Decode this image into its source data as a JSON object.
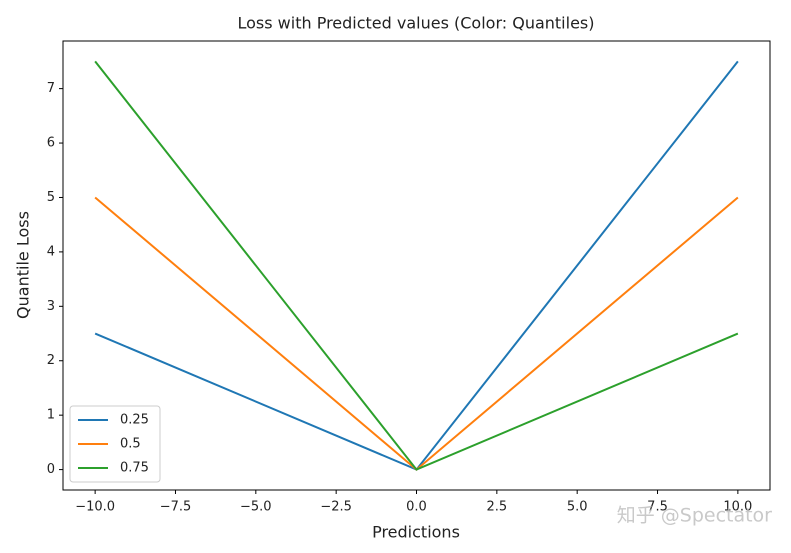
{
  "chart_data": {
    "type": "line",
    "title": "Loss with Predicted values (Color: Quantiles)",
    "x_label": "Predictions",
    "y_label": "Quantile Loss",
    "x": [
      -10,
      0,
      10
    ],
    "series": [
      {
        "name": "0.25",
        "color": "#1f77b4",
        "values": [
          2.5,
          0,
          7.5
        ]
      },
      {
        "name": "0.5",
        "color": "#ff7f0e",
        "values": [
          5,
          0,
          5
        ]
      },
      {
        "name": "0.75",
        "color": "#2ca02c",
        "values": [
          7.5,
          0,
          2.5
        ]
      }
    ],
    "xlim": [
      -11,
      11
    ],
    "xticks": [
      {
        "value": -10,
        "label": "−10.0"
      },
      {
        "value": -7.5,
        "label": "−7.5"
      },
      {
        "value": -5,
        "label": "−5.0"
      },
      {
        "value": -2.5,
        "label": "−2.5"
      },
      {
        "value": 0,
        "label": "0.0"
      },
      2.5,
      {
        "value": 5,
        "label": "5.0"
      },
      7.5,
      {
        "value": 10,
        "label": "10.0"
      }
    ],
    "ylim": [
      -0.375,
      7.875
    ],
    "yticks": [
      0,
      1,
      2,
      3,
      4,
      5,
      6,
      7
    ],
    "legend": "lower left",
    "grid": false,
    "watermark": "知乎 @Spectator"
  }
}
